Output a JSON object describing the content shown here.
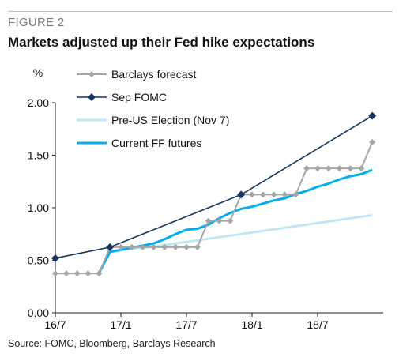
{
  "figure": {
    "label": "FIGURE 2",
    "title": "Markets adjusted up their Fed hike expectations",
    "source": "Source: FOMC, Bloomberg, Barclays Research"
  },
  "colors": {
    "barclays": "#a6a6a6",
    "sep_fomc": "#17375e",
    "pre_election": "#bfe6f4",
    "current_ff": "#00aeef"
  },
  "chart_data": {
    "type": "line",
    "ylabel": "%",
    "xlabel": "",
    "ylim": [
      0,
      2
    ],
    "yticks": [
      "0.00",
      "0.50",
      "1.00",
      "1.50",
      "2.00"
    ],
    "xlim": [
      "2016-07",
      "2019-01"
    ],
    "xticks": [
      {
        "label": "16/7",
        "x": "2016-07"
      },
      {
        "label": "17/1",
        "x": "2017-01"
      },
      {
        "label": "17/7",
        "x": "2017-07"
      },
      {
        "label": "18/1",
        "x": "2018-01"
      },
      {
        "label": "18/7",
        "x": "2018-07"
      }
    ],
    "grid": false,
    "legend_position": "top-left",
    "series": [
      {
        "name": "Barclays forecast",
        "color": "#a6a6a6",
        "marker": "diamond",
        "points": [
          [
            "2016-07",
            0.375
          ],
          [
            "2016-08",
            0.375
          ],
          [
            "2016-09",
            0.375
          ],
          [
            "2016-10",
            0.375
          ],
          [
            "2016-11",
            0.375
          ],
          [
            "2016-12",
            0.625
          ],
          [
            "2017-01",
            0.625
          ],
          [
            "2017-02",
            0.625
          ],
          [
            "2017-03",
            0.625
          ],
          [
            "2017-04",
            0.625
          ],
          [
            "2017-05",
            0.625
          ],
          [
            "2017-06",
            0.625
          ],
          [
            "2017-07",
            0.625
          ],
          [
            "2017-08",
            0.625
          ],
          [
            "2017-09",
            0.875
          ],
          [
            "2017-10",
            0.875
          ],
          [
            "2017-11",
            0.875
          ],
          [
            "2017-12",
            1.125
          ],
          [
            "2018-01",
            1.125
          ],
          [
            "2018-02",
            1.125
          ],
          [
            "2018-03",
            1.125
          ],
          [
            "2018-04",
            1.125
          ],
          [
            "2018-05",
            1.125
          ],
          [
            "2018-06",
            1.375
          ],
          [
            "2018-07",
            1.375
          ],
          [
            "2018-08",
            1.375
          ],
          [
            "2018-09",
            1.375
          ],
          [
            "2018-10",
            1.375
          ],
          [
            "2018-11",
            1.375
          ],
          [
            "2018-12",
            1.625
          ]
        ]
      },
      {
        "name": "Sep FOMC",
        "color": "#17375e",
        "marker": "diamond",
        "points": [
          [
            "2016-07",
            0.52
          ],
          [
            "2016-12",
            0.625
          ],
          [
            "2017-12",
            1.125
          ],
          [
            "2018-12",
            1.875
          ]
        ]
      },
      {
        "name": "Pre-US Election (Nov 7)",
        "color": "#bfe6f4",
        "marker": "none",
        "points": [
          [
            "2016-11",
            0.38
          ],
          [
            "2016-12",
            0.58
          ],
          [
            "2017-02",
            0.61
          ],
          [
            "2017-04",
            0.63
          ],
          [
            "2017-06",
            0.66
          ],
          [
            "2017-08",
            0.69
          ],
          [
            "2017-10",
            0.72
          ],
          [
            "2017-12",
            0.75
          ],
          [
            "2018-02",
            0.78
          ],
          [
            "2018-04",
            0.81
          ],
          [
            "2018-06",
            0.84
          ],
          [
            "2018-08",
            0.87
          ],
          [
            "2018-10",
            0.9
          ],
          [
            "2018-12",
            0.93
          ]
        ]
      },
      {
        "name": "Current FF futures",
        "color": "#00aeef",
        "marker": "none",
        "points": [
          [
            "2016-11",
            0.38
          ],
          [
            "2016-12",
            0.58
          ],
          [
            "2017-01",
            0.6
          ],
          [
            "2017-02",
            0.62
          ],
          [
            "2017-03",
            0.64
          ],
          [
            "2017-04",
            0.66
          ],
          [
            "2017-05",
            0.7
          ],
          [
            "2017-06",
            0.75
          ],
          [
            "2017-07",
            0.79
          ],
          [
            "2017-08",
            0.8
          ],
          [
            "2017-09",
            0.84
          ],
          [
            "2017-10",
            0.9
          ],
          [
            "2017-11",
            0.95
          ],
          [
            "2017-12",
            0.99
          ],
          [
            "2018-01",
            1.01
          ],
          [
            "2018-02",
            1.04
          ],
          [
            "2018-03",
            1.07
          ],
          [
            "2018-04",
            1.09
          ],
          [
            "2018-05",
            1.13
          ],
          [
            "2018-06",
            1.16
          ],
          [
            "2018-07",
            1.2
          ],
          [
            "2018-08",
            1.23
          ],
          [
            "2018-09",
            1.27
          ],
          [
            "2018-10",
            1.3
          ],
          [
            "2018-11",
            1.32
          ],
          [
            "2018-12",
            1.36
          ]
        ]
      }
    ]
  }
}
